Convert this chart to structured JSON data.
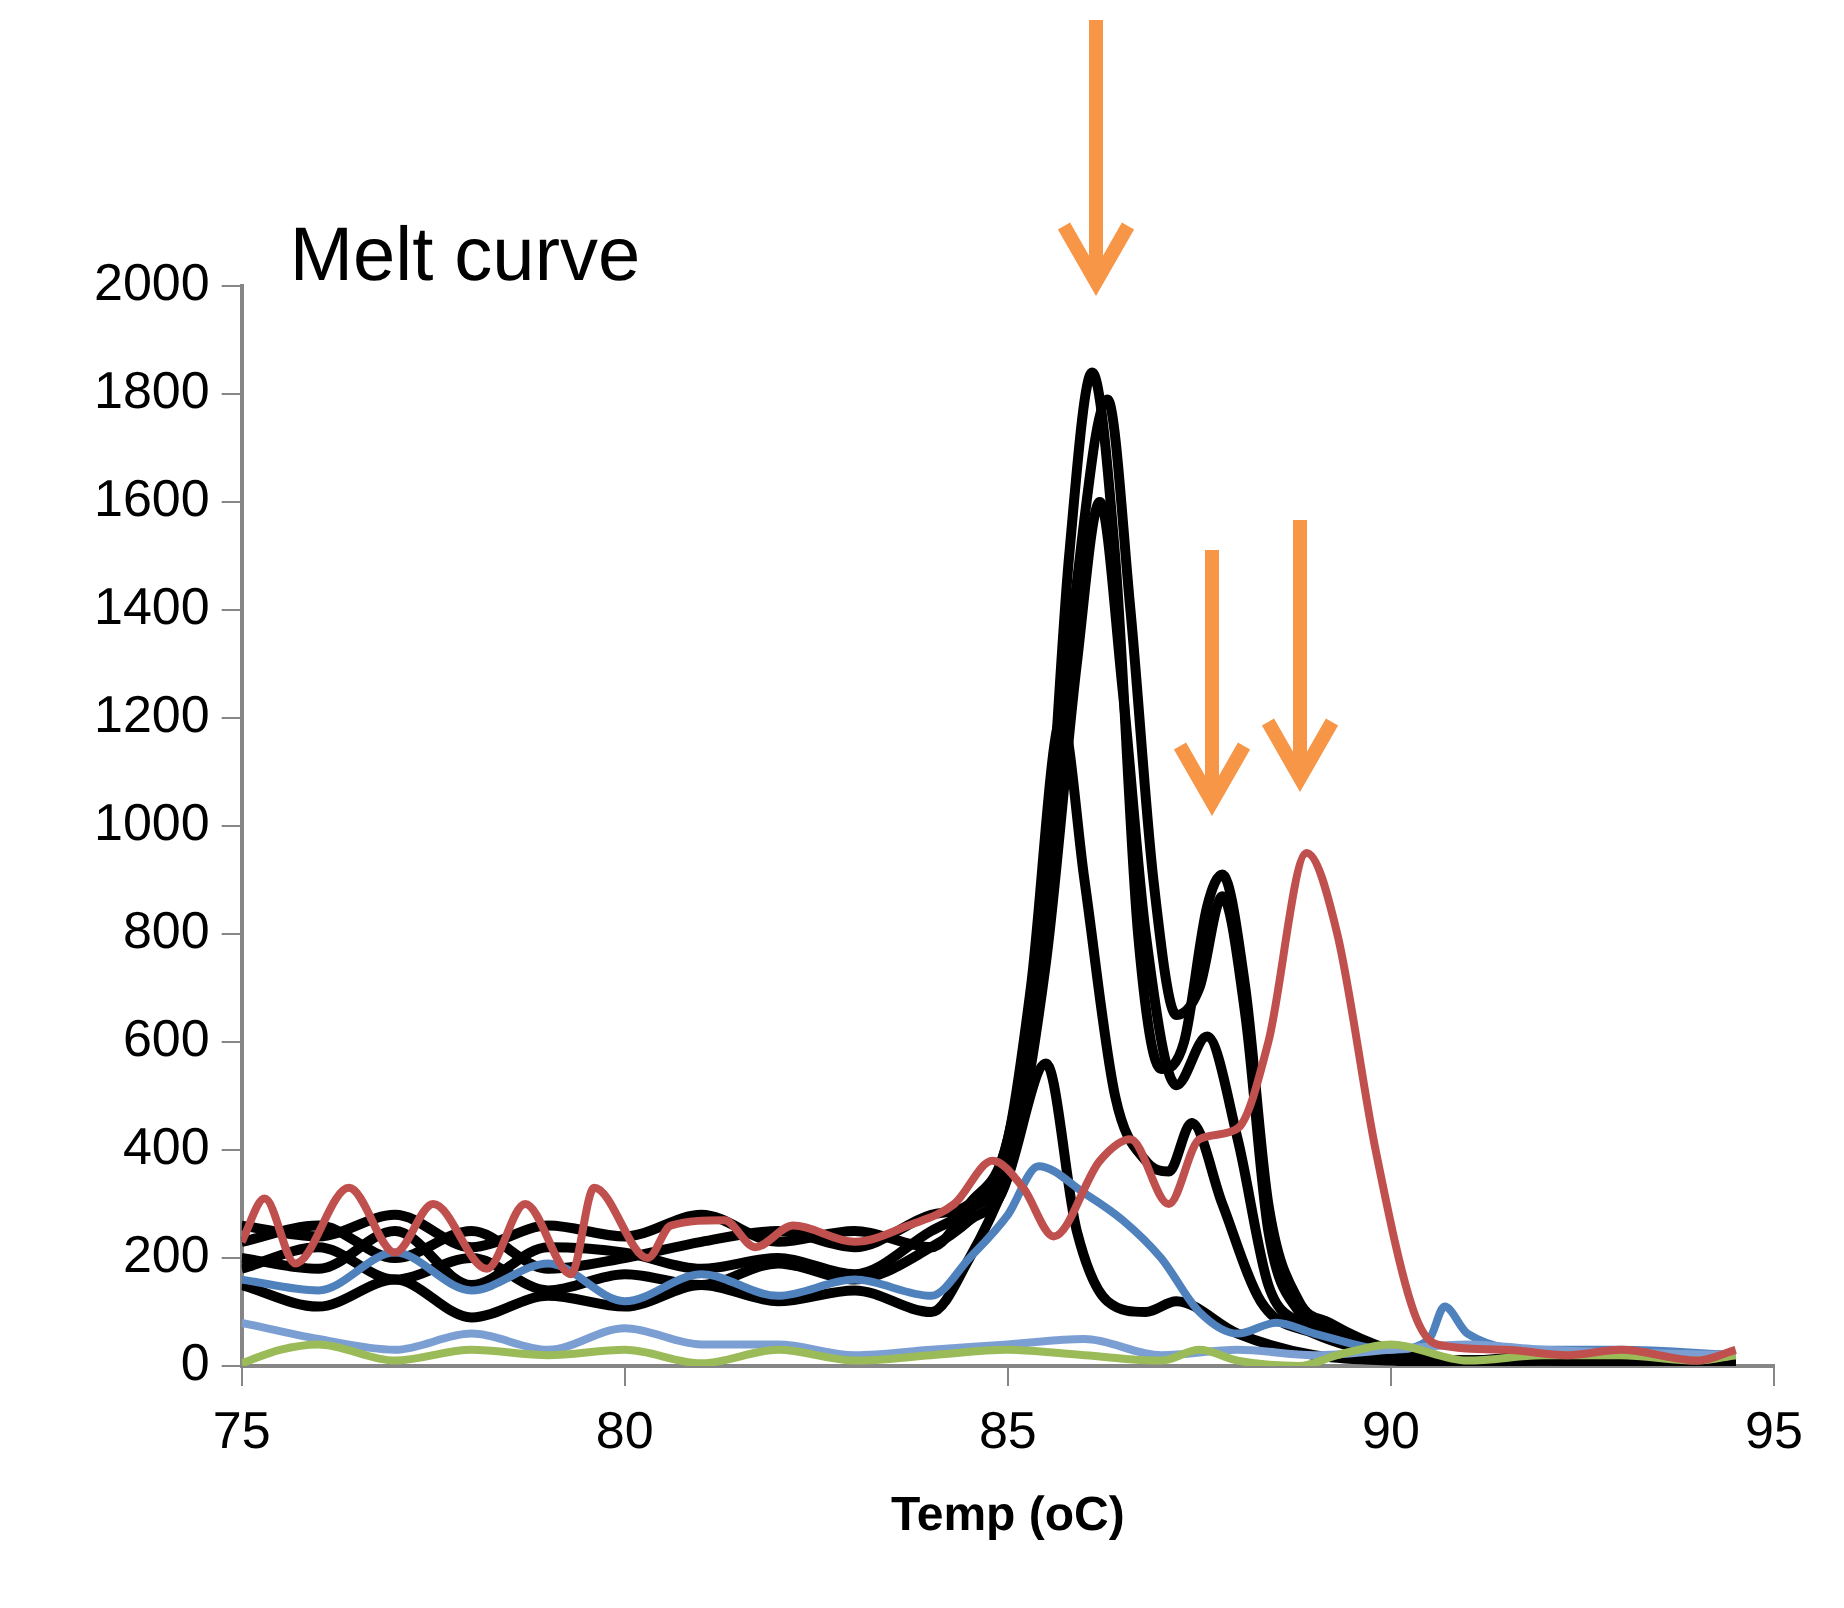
{
  "chart_data": {
    "type": "line",
    "title": "Melt curve",
    "xlabel": "Temp (oC)",
    "xlim": [
      75,
      95
    ],
    "ylim": [
      0,
      2000
    ],
    "xticks": [
      75,
      80,
      85,
      90,
      95
    ],
    "yticks": [
      0,
      200,
      400,
      600,
      800,
      1000,
      1200,
      1400,
      1600,
      1800,
      2000
    ],
    "grid": false,
    "marker": "none",
    "line_style": "solid",
    "series": [
      {
        "color": "#000000",
        "x": [
          75,
          76,
          77,
          78,
          79,
          80,
          81,
          82,
          83,
          84,
          84.5,
          85,
          85.5,
          85.8,
          86.1,
          86.4,
          86.7,
          87,
          87.3,
          87.6,
          87.8,
          88.1,
          88.4,
          88.8,
          89.2,
          90,
          91,
          92,
          93,
          94.5
        ],
        "values": [
          230,
          260,
          200,
          250,
          180,
          200,
          230,
          250,
          220,
          280,
          300,
          420,
          900,
          1500,
          1840,
          1500,
          800,
          550,
          600,
          850,
          910,
          700,
          300,
          120,
          80,
          30,
          10,
          20,
          10,
          5
        ]
      },
      {
        "color": "#000000",
        "x": [
          75,
          76,
          77,
          78,
          79,
          80,
          81,
          82,
          83,
          84,
          84.5,
          85,
          85.5,
          85.9,
          86.3,
          86.6,
          86.9,
          87.2,
          87.5,
          87.8,
          88.1,
          88.4,
          88.8,
          89.3,
          90,
          91,
          92,
          93,
          94.5
        ],
        "values": [
          200,
          180,
          250,
          150,
          220,
          210,
          180,
          200,
          170,
          250,
          290,
          380,
          850,
          1450,
          1790,
          1400,
          900,
          650,
          700,
          870,
          650,
          250,
          100,
          60,
          20,
          10,
          15,
          10,
          5
        ]
      },
      {
        "color": "#000000",
        "x": [
          75,
          76,
          77,
          78,
          79,
          80,
          81,
          82,
          83,
          84,
          84.5,
          85,
          85.5,
          85.9,
          86.2,
          86.5,
          86.8,
          87.2,
          87.6,
          88,
          88.4,
          88.8,
          89.3,
          90,
          91,
          92,
          93,
          94.5
        ],
        "values": [
          180,
          220,
          160,
          200,
          140,
          170,
          150,
          190,
          160,
          220,
          270,
          350,
          750,
          1300,
          1600,
          1250,
          800,
          520,
          610,
          420,
          150,
          80,
          50,
          20,
          10,
          10,
          5,
          5
        ]
      },
      {
        "color": "#000000",
        "x": [
          75,
          76,
          77,
          78,
          79,
          80,
          81,
          82,
          83,
          84,
          84.5,
          85,
          85.3,
          85.7,
          86,
          86.4,
          86.8,
          87.1,
          87.4,
          87.8,
          88.3,
          89,
          90,
          91,
          92,
          94.5
        ],
        "values": [
          260,
          240,
          280,
          220,
          260,
          240,
          280,
          230,
          250,
          220,
          300,
          420,
          700,
          1200,
          900,
          500,
          380,
          360,
          450,
          300,
          120,
          60,
          20,
          10,
          10,
          5
        ]
      },
      {
        "color": "#000000",
        "x": [
          75,
          76,
          77,
          78,
          79,
          80,
          81,
          82,
          83,
          84,
          84.5,
          85,
          85.5,
          85.9,
          86.3,
          86.8,
          87.2,
          88,
          89,
          90,
          91,
          92,
          94.5
        ],
        "values": [
          150,
          110,
          160,
          90,
          130,
          110,
          150,
          120,
          140,
          100,
          200,
          350,
          560,
          250,
          120,
          100,
          120,
          60,
          20,
          10,
          5,
          10,
          5
        ]
      },
      {
        "color": "#4f81bd",
        "x": [
          75,
          76,
          77,
          78,
          79,
          80,
          81,
          82,
          83,
          84,
          84.5,
          85,
          85.4,
          86,
          86.5,
          87,
          87.5,
          88,
          88.5,
          89,
          90,
          90.5,
          90.7,
          91,
          92,
          93,
          94.5
        ],
        "values": [
          160,
          140,
          210,
          140,
          190,
          120,
          170,
          130,
          160,
          130,
          200,
          280,
          370,
          320,
          270,
          200,
          100,
          60,
          80,
          60,
          30,
          50,
          110,
          60,
          30,
          30,
          20
        ]
      },
      {
        "color": "#7c9fd3",
        "x": [
          75,
          76,
          77,
          78,
          79,
          80,
          81,
          82,
          83,
          84,
          85,
          86,
          87,
          88,
          89,
          90,
          91,
          92,
          94.5
        ],
        "values": [
          80,
          50,
          30,
          60,
          30,
          70,
          40,
          40,
          20,
          30,
          40,
          50,
          20,
          30,
          20,
          30,
          40,
          30,
          20
        ]
      },
      {
        "color": "#9bbb59",
        "x": [
          75,
          75.5,
          76,
          77,
          78,
          79,
          80,
          81,
          82,
          83,
          84,
          85,
          86,
          87,
          87.5,
          88,
          88.8,
          89.3,
          90,
          91,
          92,
          93,
          94,
          94.5
        ],
        "values": [
          5,
          30,
          40,
          10,
          30,
          20,
          30,
          5,
          30,
          10,
          20,
          30,
          20,
          10,
          30,
          10,
          0,
          20,
          40,
          10,
          20,
          20,
          10,
          20
        ]
      },
      {
        "color": "#c0504d",
        "x": [
          75,
          75.3,
          75.7,
          76.4,
          77,
          77.5,
          78.2,
          78.7,
          79.3,
          79.6,
          80.3,
          80.6,
          81.3,
          81.7,
          82.2,
          83,
          83.7,
          84.3,
          84.8,
          85.2,
          85.6,
          86.2,
          86.6,
          87.1,
          87.5,
          88,
          88.4,
          88.9,
          89.3,
          89.8,
          90.3,
          90.6,
          91.5,
          92.3,
          93,
          94,
          94.5
        ],
        "values": [
          230,
          310,
          190,
          330,
          210,
          300,
          180,
          300,
          170,
          330,
          200,
          260,
          270,
          220,
          260,
          230,
          260,
          300,
          380,
          330,
          240,
          380,
          420,
          300,
          420,
          440,
          600,
          950,
          800,
          400,
          100,
          40,
          30,
          20,
          30,
          10,
          30
        ]
      }
    ]
  }
}
